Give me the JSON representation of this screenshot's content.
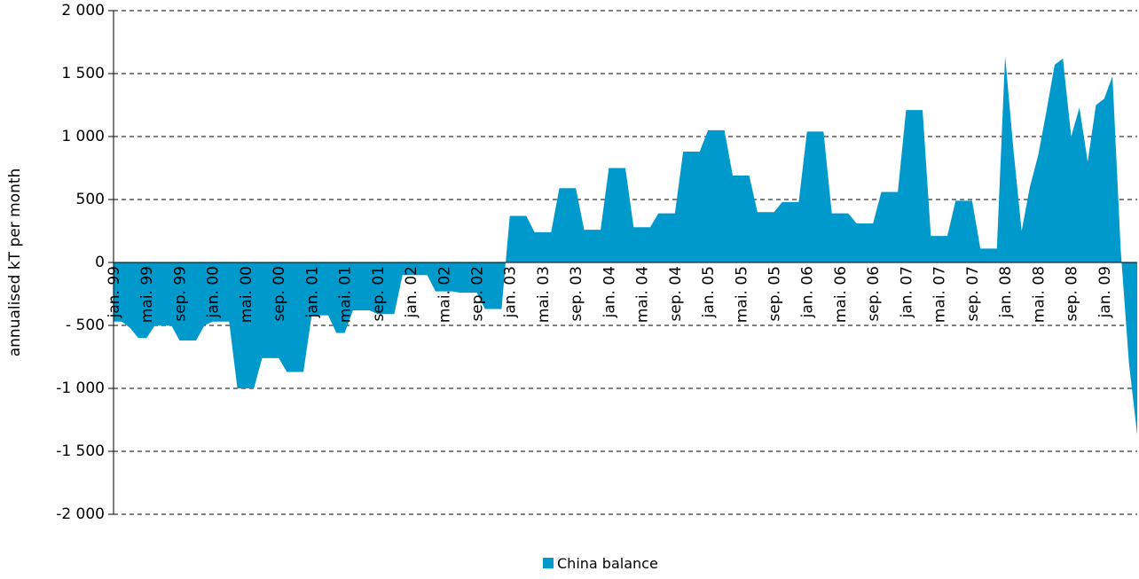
{
  "chart_data": {
    "type": "area",
    "y_label": "annualised kT per month",
    "categories": [
      "jan. 99",
      null,
      null,
      null,
      "mai. 99",
      null,
      null,
      null,
      "sep. 99",
      null,
      null,
      null,
      "jan. 00",
      null,
      null,
      null,
      "mai. 00",
      null,
      null,
      null,
      "sep. 00",
      null,
      null,
      null,
      "jan. 01",
      null,
      null,
      null,
      "mai. 01",
      null,
      null,
      null,
      "sep. 01",
      null,
      null,
      null,
      "jan. 02",
      null,
      null,
      null,
      "mai. 02",
      null,
      null,
      null,
      "sep. 02",
      null,
      null,
      null,
      "jan. 03",
      null,
      null,
      null,
      "mai. 03",
      null,
      null,
      null,
      "sep. 03",
      null,
      null,
      null,
      "jan. 04",
      null,
      null,
      null,
      "mai. 04",
      null,
      null,
      null,
      "sep. 04",
      null,
      null,
      null,
      "jan. 05",
      null,
      null,
      null,
      "mai. 05",
      null,
      null,
      null,
      "sep. 05",
      null,
      null,
      null,
      "jan. 06",
      null,
      null,
      null,
      "mai. 06",
      null,
      null,
      null,
      "sep. 06",
      null,
      null,
      null,
      "jan. 07",
      null,
      null,
      null,
      "mai. 07",
      null,
      null,
      null,
      "sep. 07",
      null,
      null,
      null,
      "jan. 08",
      null,
      null,
      null,
      "mai. 08",
      null,
      null,
      null,
      "sep. 08",
      null,
      null,
      null,
      "jan. 09",
      null,
      null,
      null,
      null
    ],
    "series": [
      {
        "name": "China balance",
        "color": "#0099cc",
        "values": [
          -470,
          -470,
          -520,
          -600,
          -600,
          -500,
          -500,
          -500,
          -620,
          -620,
          -620,
          -500,
          -470,
          -470,
          -470,
          -1000,
          -1000,
          -1000,
          -760,
          -760,
          -760,
          -870,
          -870,
          -870,
          -420,
          -420,
          -420,
          -560,
          -560,
          -380,
          -380,
          -380,
          -410,
          -410,
          -410,
          -100,
          -100,
          -100,
          -100,
          -230,
          -230,
          -230,
          -240,
          -240,
          -240,
          -370,
          -370,
          -370,
          370,
          370,
          370,
          240,
          240,
          240,
          590,
          590,
          590,
          260,
          260,
          260,
          750,
          750,
          750,
          280,
          280,
          280,
          390,
          390,
          390,
          880,
          880,
          880,
          1050,
          1050,
          1050,
          690,
          690,
          690,
          400,
          400,
          400,
          480,
          480,
          480,
          1040,
          1040,
          1040,
          390,
          390,
          390,
          310,
          310,
          310,
          560,
          560,
          560,
          1210,
          1210,
          1210,
          210,
          210,
          210,
          490,
          490,
          490,
          110,
          110,
          110,
          1640,
          900,
          250,
          600,
          850,
          1200,
          1570,
          1620,
          1000,
          1230,
          800,
          1250,
          1300,
          1480,
          100,
          -800,
          -1370
        ]
      }
    ],
    "ylim": [
      -2000,
      2000
    ],
    "yticks": [
      {
        "value": -2000,
        "label": "-2 000"
      },
      {
        "value": -1500,
        "label": "-1 500"
      },
      {
        "value": -1000,
        "label": "-1 000"
      },
      {
        "value": -500,
        "label": "- 500"
      },
      0,
      500,
      {
        "value": 1000,
        "label": "1 000"
      },
      {
        "value": 1500,
        "label": "1 500"
      },
      {
        "value": 2000,
        "label": "2 000"
      }
    ],
    "grid": true
  }
}
